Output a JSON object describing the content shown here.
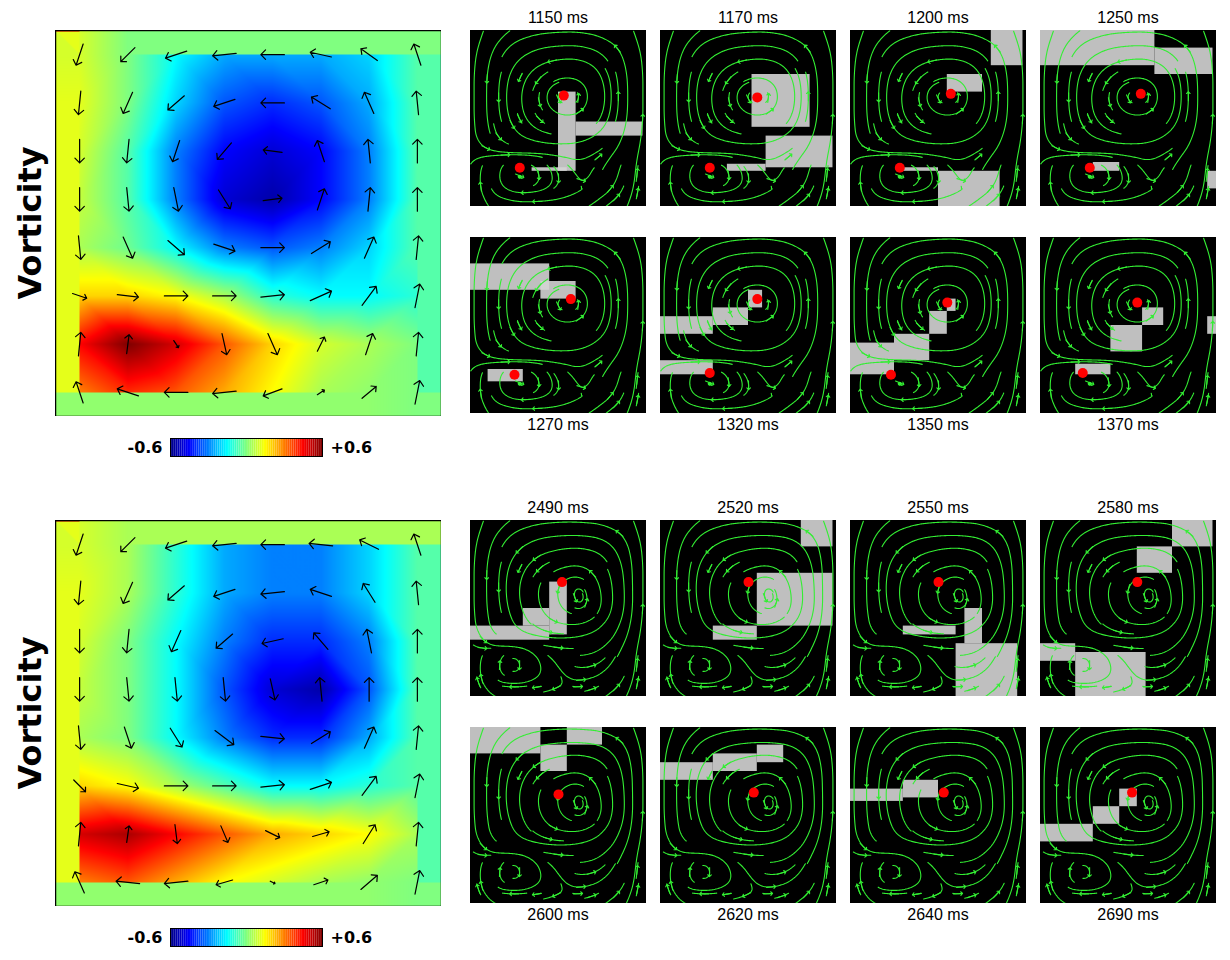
{
  "chart_data": [
    {
      "type": "heatmap",
      "ylabel": "Vorticity",
      "tick_labels": false,
      "xlim": [
        0,
        1
      ],
      "ylim": [
        0,
        1
      ],
      "x": [
        0.0625,
        0.1875,
        0.3125,
        0.4375,
        0.5625,
        0.6875,
        0.8125,
        0.9375
      ],
      "y": [
        0.0625,
        0.1875,
        0.3125,
        0.4375,
        0.5625,
        0.6875,
        0.8125,
        0.9375
      ],
      "cells": [
        [
          0.1,
          0.0,
          -0.15,
          -0.25,
          -0.25,
          -0.25,
          -0.2,
          -0.05
        ],
        [
          0.12,
          0.0,
          -0.2,
          -0.35,
          -0.4,
          -0.35,
          -0.25,
          -0.05
        ],
        [
          0.1,
          -0.05,
          -0.3,
          -0.45,
          -0.5,
          -0.45,
          -0.3,
          -0.05
        ],
        [
          0.08,
          -0.05,
          -0.3,
          -0.5,
          -0.55,
          -0.45,
          -0.3,
          -0.05
        ],
        [
          0.05,
          -0.02,
          -0.15,
          -0.3,
          -0.35,
          -0.3,
          -0.2,
          -0.05
        ],
        [
          0.2,
          0.2,
          0.15,
          0.05,
          -0.1,
          -0.15,
          -0.15,
          -0.1
        ],
        [
          0.45,
          0.6,
          0.5,
          0.35,
          0.2,
          0.1,
          0.05,
          0.0
        ],
        [
          0.3,
          0.4,
          0.35,
          0.25,
          0.15,
          0.05,
          0.02,
          0.0
        ]
      ],
      "u": [
        [
          -0.3,
          -0.6,
          -0.9,
          -1,
          -1,
          -0.9,
          -0.7,
          -0.3
        ],
        [
          -0.1,
          -0.4,
          -0.7,
          -0.9,
          -1,
          -0.8,
          -0.4,
          -0.1
        ],
        [
          0,
          -0.1,
          -0.3,
          -0.6,
          -0.8,
          -0.3,
          -0.1,
          0
        ],
        [
          0,
          0.1,
          0.2,
          0.5,
          0.8,
          0.3,
          0.1,
          0
        ],
        [
          0.1,
          0.4,
          0.7,
          0.9,
          1,
          0.8,
          0.4,
          0.1
        ],
        [
          0.6,
          0.9,
          1,
          1,
          1,
          0.9,
          0.6,
          0.2
        ],
        [
          0.1,
          0.1,
          0.2,
          0.2,
          0.4,
          0.3,
          0.3,
          0.1
        ],
        [
          -0.3,
          -0.9,
          -1,
          -1,
          -0.8,
          0.3,
          0.6,
          0.2
        ]
      ],
      "v": [
        [
          0.9,
          0.6,
          0.3,
          0.1,
          0,
          -0.2,
          -0.5,
          -0.9
        ],
        [
          1,
          0.9,
          0.6,
          0.3,
          0,
          -0.5,
          -0.9,
          -1
        ],
        [
          1,
          1,
          0.9,
          0.7,
          -0.1,
          -0.9,
          -1,
          -1
        ],
        [
          1,
          1,
          1,
          0.8,
          -0.1,
          -0.9,
          -1,
          -1
        ],
        [
          1,
          0.9,
          0.6,
          0.3,
          0,
          -0.5,
          -0.9,
          -1
        ],
        [
          0.2,
          0.1,
          0,
          0,
          -0.1,
          -0.4,
          -0.8,
          -1
        ],
        [
          -1,
          -0.8,
          0.3,
          0.9,
          0.9,
          -0.6,
          -0.9,
          -1
        ],
        [
          -0.9,
          -0.3,
          0,
          0.1,
          0.3,
          -0.2,
          -0.5,
          -1
        ]
      ],
      "color_range": [
        -0.6,
        0.6
      ],
      "color_ticks": [
        -0.6,
        {
          "value": 0.6,
          "label": "+0.6"
        }
      ],
      "panels": [
        {
          "title": "1150 ms",
          "dots": [
            [
              0.53,
              0.37
            ],
            [
              0.28,
              0.78
            ]
          ],
          "active": [
            [
              0.5,
              0.35,
              0.6,
              0.8
            ],
            [
              0.6,
              0.52,
              0.98,
              0.6
            ],
            [
              0.35,
              0.78,
              0.55,
              0.8
            ]
          ]
        },
        {
          "title": "1170 ms",
          "dots": [
            [
              0.55,
              0.38
            ],
            [
              0.28,
              0.78
            ]
          ],
          "active": [
            [
              0.52,
              0.25,
              0.85,
              0.55
            ],
            [
              0.6,
              0.6,
              0.98,
              0.78
            ],
            [
              0.38,
              0.76,
              0.6,
              0.8
            ]
          ]
        },
        {
          "title": "1200 ms",
          "dots": [
            [
              0.57,
              0.36
            ],
            [
              0.28,
              0.78
            ]
          ],
          "active": [
            [
              0.8,
              0.0,
              0.98,
              0.2
            ],
            [
              0.55,
              0.25,
              0.75,
              0.35
            ],
            [
              0.5,
              0.8,
              0.85,
              1.0
            ],
            [
              0.3,
              0.78,
              0.5,
              0.8
            ]
          ]
        },
        {
          "title": "1250 ms",
          "dots": [
            [
              0.57,
              0.36
            ],
            [
              0.28,
              0.78
            ]
          ],
          "active": [
            [
              0.0,
              0.0,
              0.65,
              0.2
            ],
            [
              0.65,
              0.1,
              0.98,
              0.25
            ],
            [
              0.95,
              0.8,
              1.0,
              0.9
            ],
            [
              0.3,
              0.75,
              0.45,
              0.8
            ]
          ]
        },
        {
          "title": "1270 ms",
          "dots": [
            [
              0.57,
              0.35
            ],
            [
              0.25,
              0.78
            ]
          ],
          "active": [
            [
              0.0,
              0.15,
              0.45,
              0.3
            ],
            [
              0.4,
              0.25,
              0.6,
              0.35
            ],
            [
              0.1,
              0.75,
              0.3,
              0.82
            ]
          ]
        },
        {
          "title": "1320 ms",
          "dots": [
            [
              0.55,
              0.35
            ],
            [
              0.28,
              0.77
            ]
          ],
          "active": [
            [
              0.0,
              0.45,
              0.3,
              0.55
            ],
            [
              0.3,
              0.4,
              0.5,
              0.5
            ],
            [
              0.5,
              0.3,
              0.58,
              0.4
            ],
            [
              0.0,
              0.7,
              0.3,
              0.78
            ]
          ]
        },
        {
          "title": "1350 ms",
          "dots": [
            [
              0.55,
              0.37
            ],
            [
              0.23,
              0.78
            ]
          ],
          "active": [
            [
              0.0,
              0.6,
              0.25,
              0.78
            ],
            [
              0.25,
              0.55,
              0.45,
              0.7
            ],
            [
              0.45,
              0.42,
              0.55,
              0.55
            ],
            [
              0.55,
              0.35,
              0.6,
              0.42
            ]
          ]
        },
        {
          "title": "1370 ms",
          "dots": [
            [
              0.55,
              0.37
            ],
            [
              0.24,
              0.77
            ]
          ],
          "active": [
            [
              0.4,
              0.5,
              0.58,
              0.65
            ],
            [
              0.58,
              0.4,
              0.7,
              0.5
            ],
            [
              0.2,
              0.72,
              0.4,
              0.78
            ],
            [
              0.95,
              0.45,
              1.0,
              0.55
            ]
          ]
        }
      ]
    },
    {
      "type": "heatmap",
      "ylabel": "Vorticity",
      "tick_labels": false,
      "xlim": [
        0,
        1
      ],
      "ylim": [
        0,
        1
      ],
      "x": [
        0.0625,
        0.1875,
        0.3125,
        0.4375,
        0.5625,
        0.6875,
        0.8125,
        0.9375
      ],
      "y": [
        0.0625,
        0.1875,
        0.3125,
        0.4375,
        0.5625,
        0.6875,
        0.8125,
        0.9375
      ],
      "cells": [
        [
          0.1,
          0.05,
          -0.1,
          -0.25,
          -0.3,
          -0.3,
          -0.2,
          -0.05
        ],
        [
          0.12,
          0.05,
          -0.1,
          -0.25,
          -0.3,
          -0.3,
          -0.2,
          -0.05
        ],
        [
          0.1,
          0.0,
          -0.15,
          -0.3,
          -0.4,
          -0.4,
          -0.3,
          -0.05
        ],
        [
          0.08,
          0.0,
          -0.15,
          -0.35,
          -0.5,
          -0.55,
          -0.35,
          -0.05
        ],
        [
          0.05,
          0.0,
          -0.15,
          -0.3,
          -0.4,
          -0.4,
          -0.25,
          -0.05
        ],
        [
          0.2,
          0.15,
          0.05,
          -0.05,
          -0.15,
          -0.15,
          -0.1,
          -0.05
        ],
        [
          0.5,
          0.55,
          0.45,
          0.35,
          0.25,
          0.2,
          0.15,
          0.05
        ],
        [
          0.3,
          0.35,
          0.25,
          0.15,
          0.1,
          0.05,
          0.02,
          0.0
        ]
      ],
      "u": [
        [
          -0.3,
          -0.6,
          -0.9,
          -1,
          -1,
          -1,
          -0.8,
          -0.3
        ],
        [
          -0.1,
          -0.4,
          -0.7,
          -0.9,
          -1,
          -0.9,
          -0.5,
          -0.1
        ],
        [
          0,
          -0.1,
          -0.4,
          -0.7,
          -0.9,
          -0.6,
          -0.2,
          0
        ],
        [
          0,
          0.1,
          0.1,
          0.1,
          0.2,
          -0.1,
          0,
          0
        ],
        [
          0.1,
          0.3,
          0.5,
          0.8,
          1,
          0.8,
          0.4,
          0.1
        ],
        [
          0.5,
          0.9,
          1,
          1,
          1,
          0.9,
          0.6,
          0.2
        ],
        [
          0.1,
          0.1,
          0.1,
          0.3,
          0.6,
          0.7,
          0.5,
          0.1
        ],
        [
          -0.4,
          -1,
          -1,
          -0.7,
          0.2,
          0.6,
          0.7,
          0.2
        ]
      ],
      "v": [
        [
          0.9,
          0.6,
          0.3,
          0.1,
          0,
          -0.1,
          -0.4,
          -0.9
        ],
        [
          1,
          0.9,
          0.6,
          0.3,
          0.1,
          -0.3,
          -0.8,
          -1
        ],
        [
          1,
          1,
          0.9,
          0.6,
          0.2,
          -0.7,
          -1,
          -1
        ],
        [
          1,
          1,
          1,
          1,
          0.9,
          -1,
          -1,
          -1
        ],
        [
          1,
          0.9,
          0.8,
          0.6,
          0.1,
          -0.5,
          -0.9,
          -1
        ],
        [
          0.5,
          0.2,
          0,
          0,
          -0.1,
          -0.3,
          -0.8,
          -1
        ],
        [
          -1,
          -0.7,
          0.8,
          0.7,
          0.3,
          -0.2,
          -0.8,
          -1
        ],
        [
          -0.9,
          -0.1,
          0.1,
          0.2,
          0.1,
          -0.2,
          -0.6,
          -1
        ]
      ],
      "color_range": [
        -0.6,
        0.6
      ],
      "color_ticks": [
        -0.6,
        {
          "value": 0.6,
          "label": "+0.6"
        }
      ],
      "panels": [
        {
          "title": "2490 ms",
          "dots": [
            [
              0.52,
              0.35
            ]
          ],
          "active": [
            [
              0.45,
              0.35,
              0.55,
              0.65
            ],
            [
              0.0,
              0.6,
              0.45,
              0.68
            ],
            [
              0.3,
              0.5,
              0.45,
              0.6
            ]
          ]
        },
        {
          "title": "2520 ms",
          "dots": [
            [
              0.5,
              0.35
            ]
          ],
          "active": [
            [
              0.55,
              0.3,
              0.98,
              0.6
            ],
            [
              0.3,
              0.6,
              0.55,
              0.68
            ],
            [
              0.8,
              0.0,
              0.98,
              0.15
            ]
          ]
        },
        {
          "title": "2550 ms",
          "dots": [
            [
              0.5,
              0.35
            ]
          ],
          "active": [
            [
              0.65,
              0.5,
              0.75,
              0.7
            ],
            [
              0.6,
              0.7,
              0.95,
              1.0
            ],
            [
              0.3,
              0.6,
              0.6,
              0.65
            ]
          ]
        },
        {
          "title": "2580 ms",
          "dots": [
            [
              0.55,
              0.35
            ]
          ],
          "active": [
            [
              0.75,
              0.0,
              0.98,
              0.15
            ],
            [
              0.55,
              0.15,
              0.75,
              0.3
            ],
            [
              0.2,
              0.75,
              0.6,
              1.0
            ],
            [
              0.0,
              0.7,
              0.2,
              0.8
            ]
          ]
        },
        {
          "title": "2600 ms",
          "dots": [
            [
              0.5,
              0.38
            ]
          ],
          "active": [
            [
              0.0,
              0.0,
              0.4,
              0.15
            ],
            [
              0.4,
              0.1,
              0.55,
              0.25
            ],
            [
              0.55,
              0.0,
              0.75,
              0.1
            ]
          ]
        },
        {
          "title": "2620 ms",
          "dots": [
            [
              0.53,
              0.37
            ]
          ],
          "active": [
            [
              0.0,
              0.2,
              0.3,
              0.3
            ],
            [
              0.3,
              0.15,
              0.55,
              0.25
            ],
            [
              0.55,
              0.1,
              0.7,
              0.2
            ]
          ]
        },
        {
          "title": "2640 ms",
          "dots": [
            [
              0.53,
              0.37
            ]
          ],
          "active": [
            [
              0.0,
              0.35,
              0.3,
              0.42
            ],
            [
              0.3,
              0.3,
              0.5,
              0.4
            ]
          ]
        },
        {
          "title": "2690 ms",
          "dots": [
            [
              0.52,
              0.37
            ]
          ],
          "active": [
            [
              0.0,
              0.55,
              0.3,
              0.65
            ],
            [
              0.3,
              0.45,
              0.45,
              0.55
            ],
            [
              0.45,
              0.35,
              0.55,
              0.45
            ]
          ]
        }
      ]
    }
  ]
}
